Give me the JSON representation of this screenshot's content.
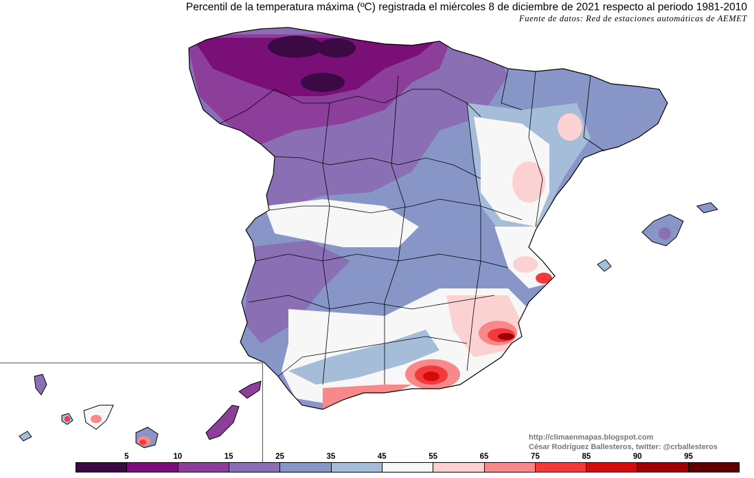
{
  "header": {
    "title": "Percentil de la temperatura máxima (ºC) registrada el miércoles 8 de diciembre de 2021 respecto al periodo 1981-2010",
    "source": "Fuente de datos: Red de estaciones automáticas de AEMET"
  },
  "credits": {
    "blog": "http://climaenmapas.blogspot.com",
    "author": "César Rodríguez Ballesteros, twitter: @crballesteros"
  },
  "legend": {
    "colors": [
      "#3b0a45",
      "#7a0f78",
      "#8c3e9a",
      "#8a6fb4",
      "#8796c6",
      "#a6bdda",
      "#f7f7f7",
      "#fbd1d1",
      "#f7898a",
      "#f23a3a",
      "#d30b0b",
      "#9c0202",
      "#5e0000"
    ],
    "ticks": [
      "5",
      "10",
      "15",
      "25",
      "35",
      "45",
      "55",
      "65",
      "75",
      "85",
      "90",
      "95"
    ]
  },
  "map": {
    "colors": {
      "deep_purple": "#3b0a45",
      "purple": "#7a0f78",
      "violet": "#8c3e9a",
      "lavender": "#8a6fb4",
      "blue_grey": "#8796c6",
      "light_blue": "#a6bdda",
      "white": "#f7f7f7",
      "pink": "#fbd1d1",
      "salmon": "#f7898a",
      "red": "#f23a3a",
      "dark_red": "#9c0202",
      "border": "#000000"
    }
  }
}
